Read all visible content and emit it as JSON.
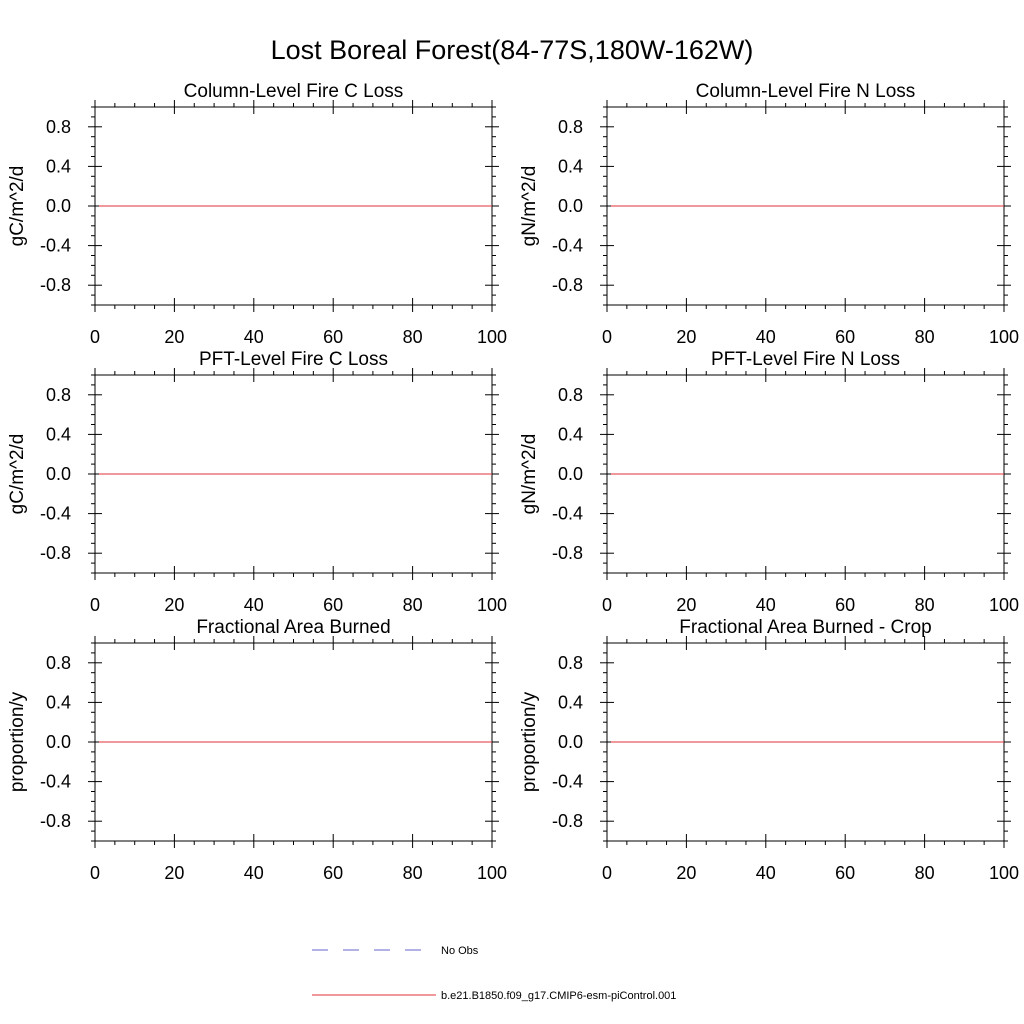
{
  "figure_title": "Lost Boreal Forest(84-77S,180W-162W)",
  "chart_data": [
    {
      "type": "line",
      "title": "Column-Level Fire C Loss",
      "ylabel": "gC/m^2/d",
      "xlabel": "",
      "xlim": [
        0,
        100
      ],
      "ylim": [
        -1,
        1
      ],
      "xticks": [
        0,
        20,
        40,
        60,
        80,
        100
      ],
      "yticks": [
        -0.8,
        -0.4,
        0.0,
        0.4,
        0.8
      ],
      "xtick_labels": [
        "0",
        "20",
        "40",
        "60",
        "80",
        "100"
      ],
      "ytick_labels": [
        "-0.8",
        "-0.4",
        "0.0",
        "0.4",
        "0.8"
      ],
      "series": [
        {
          "name": "b.e21.B1850.f09_g17.CMIP6-esm-piControl.001",
          "x": [
            1,
            100
          ],
          "y": [
            0,
            0
          ]
        }
      ]
    },
    {
      "type": "line",
      "title": "Column-Level Fire N Loss",
      "ylabel": "gN/m^2/d",
      "xlabel": "",
      "xlim": [
        0,
        100
      ],
      "ylim": [
        -1,
        1
      ],
      "xticks": [
        0,
        20,
        40,
        60,
        80,
        100
      ],
      "yticks": [
        -0.8,
        -0.4,
        0.0,
        0.4,
        0.8
      ],
      "xtick_labels": [
        "0",
        "20",
        "40",
        "60",
        "80",
        "100"
      ],
      "ytick_labels": [
        "-0.8",
        "-0.4",
        "0.0",
        "0.4",
        "0.8"
      ],
      "series": [
        {
          "name": "b.e21.B1850.f09_g17.CMIP6-esm-piControl.001",
          "x": [
            1,
            100
          ],
          "y": [
            0,
            0
          ]
        }
      ]
    },
    {
      "type": "line",
      "title": "PFT-Level Fire C Loss",
      "ylabel": "gC/m^2/d",
      "xlabel": "",
      "xlim": [
        0,
        100
      ],
      "ylim": [
        -1,
        1
      ],
      "xticks": [
        0,
        20,
        40,
        60,
        80,
        100
      ],
      "yticks": [
        -0.8,
        -0.4,
        0.0,
        0.4,
        0.8
      ],
      "xtick_labels": [
        "0",
        "20",
        "40",
        "60",
        "80",
        "100"
      ],
      "ytick_labels": [
        "-0.8",
        "-0.4",
        "0.0",
        "0.4",
        "0.8"
      ],
      "series": [
        {
          "name": "b.e21.B1850.f09_g17.CMIP6-esm-piControl.001",
          "x": [
            1,
            100
          ],
          "y": [
            0,
            0
          ]
        }
      ]
    },
    {
      "type": "line",
      "title": "PFT-Level Fire N Loss",
      "ylabel": "gN/m^2/d",
      "xlabel": "",
      "xlim": [
        0,
        100
      ],
      "ylim": [
        -1,
        1
      ],
      "xticks": [
        0,
        20,
        40,
        60,
        80,
        100
      ],
      "yticks": [
        -0.8,
        -0.4,
        0.0,
        0.4,
        0.8
      ],
      "xtick_labels": [
        "0",
        "20",
        "40",
        "60",
        "80",
        "100"
      ],
      "ytick_labels": [
        "-0.8",
        "-0.4",
        "0.0",
        "0.4",
        "0.8"
      ],
      "series": [
        {
          "name": "b.e21.B1850.f09_g17.CMIP6-esm-piControl.001",
          "x": [
            1,
            100
          ],
          "y": [
            0,
            0
          ]
        }
      ]
    },
    {
      "type": "line",
      "title": "Fractional Area Burned",
      "ylabel": "proportion/y",
      "xlabel": "",
      "xlim": [
        0,
        100
      ],
      "ylim": [
        -1,
        1
      ],
      "xticks": [
        0,
        20,
        40,
        60,
        80,
        100
      ],
      "yticks": [
        -0.8,
        -0.4,
        0.0,
        0.4,
        0.8
      ],
      "xtick_labels": [
        "0",
        "20",
        "40",
        "60",
        "80",
        "100"
      ],
      "ytick_labels": [
        "-0.8",
        "-0.4",
        "0.0",
        "0.4",
        "0.8"
      ],
      "series": [
        {
          "name": "b.e21.B1850.f09_g17.CMIP6-esm-piControl.001",
          "x": [
            1,
            100
          ],
          "y": [
            0,
            0
          ]
        }
      ]
    },
    {
      "type": "line",
      "title": "Fractional Area Burned - Crop",
      "ylabel": "proportion/y",
      "xlabel": "",
      "xlim": [
        0,
        100
      ],
      "ylim": [
        -1,
        1
      ],
      "xticks": [
        0,
        20,
        40,
        60,
        80,
        100
      ],
      "yticks": [
        -0.8,
        -0.4,
        0.0,
        0.4,
        0.8
      ],
      "xtick_labels": [
        "0",
        "20",
        "40",
        "60",
        "80",
        "100"
      ],
      "ytick_labels": [
        "-0.8",
        "-0.4",
        "0.0",
        "0.4",
        "0.8"
      ],
      "series": [
        {
          "name": "b.e21.B1850.f09_g17.CMIP6-esm-piControl.001",
          "x": [
            1,
            100
          ],
          "y": [
            0,
            0
          ]
        }
      ]
    }
  ],
  "legend": [
    {
      "label": "No Obs",
      "color": "#6666cc",
      "style": "dashed"
    },
    {
      "label": "b.e21.B1850.f09_g17.CMIP6-esm-piControl.001",
      "color": "#e0303a",
      "style": "solid"
    }
  ],
  "colors": {
    "axis": "#000000",
    "model_line": "#e0303a",
    "obs_line": "#6666cc"
  }
}
